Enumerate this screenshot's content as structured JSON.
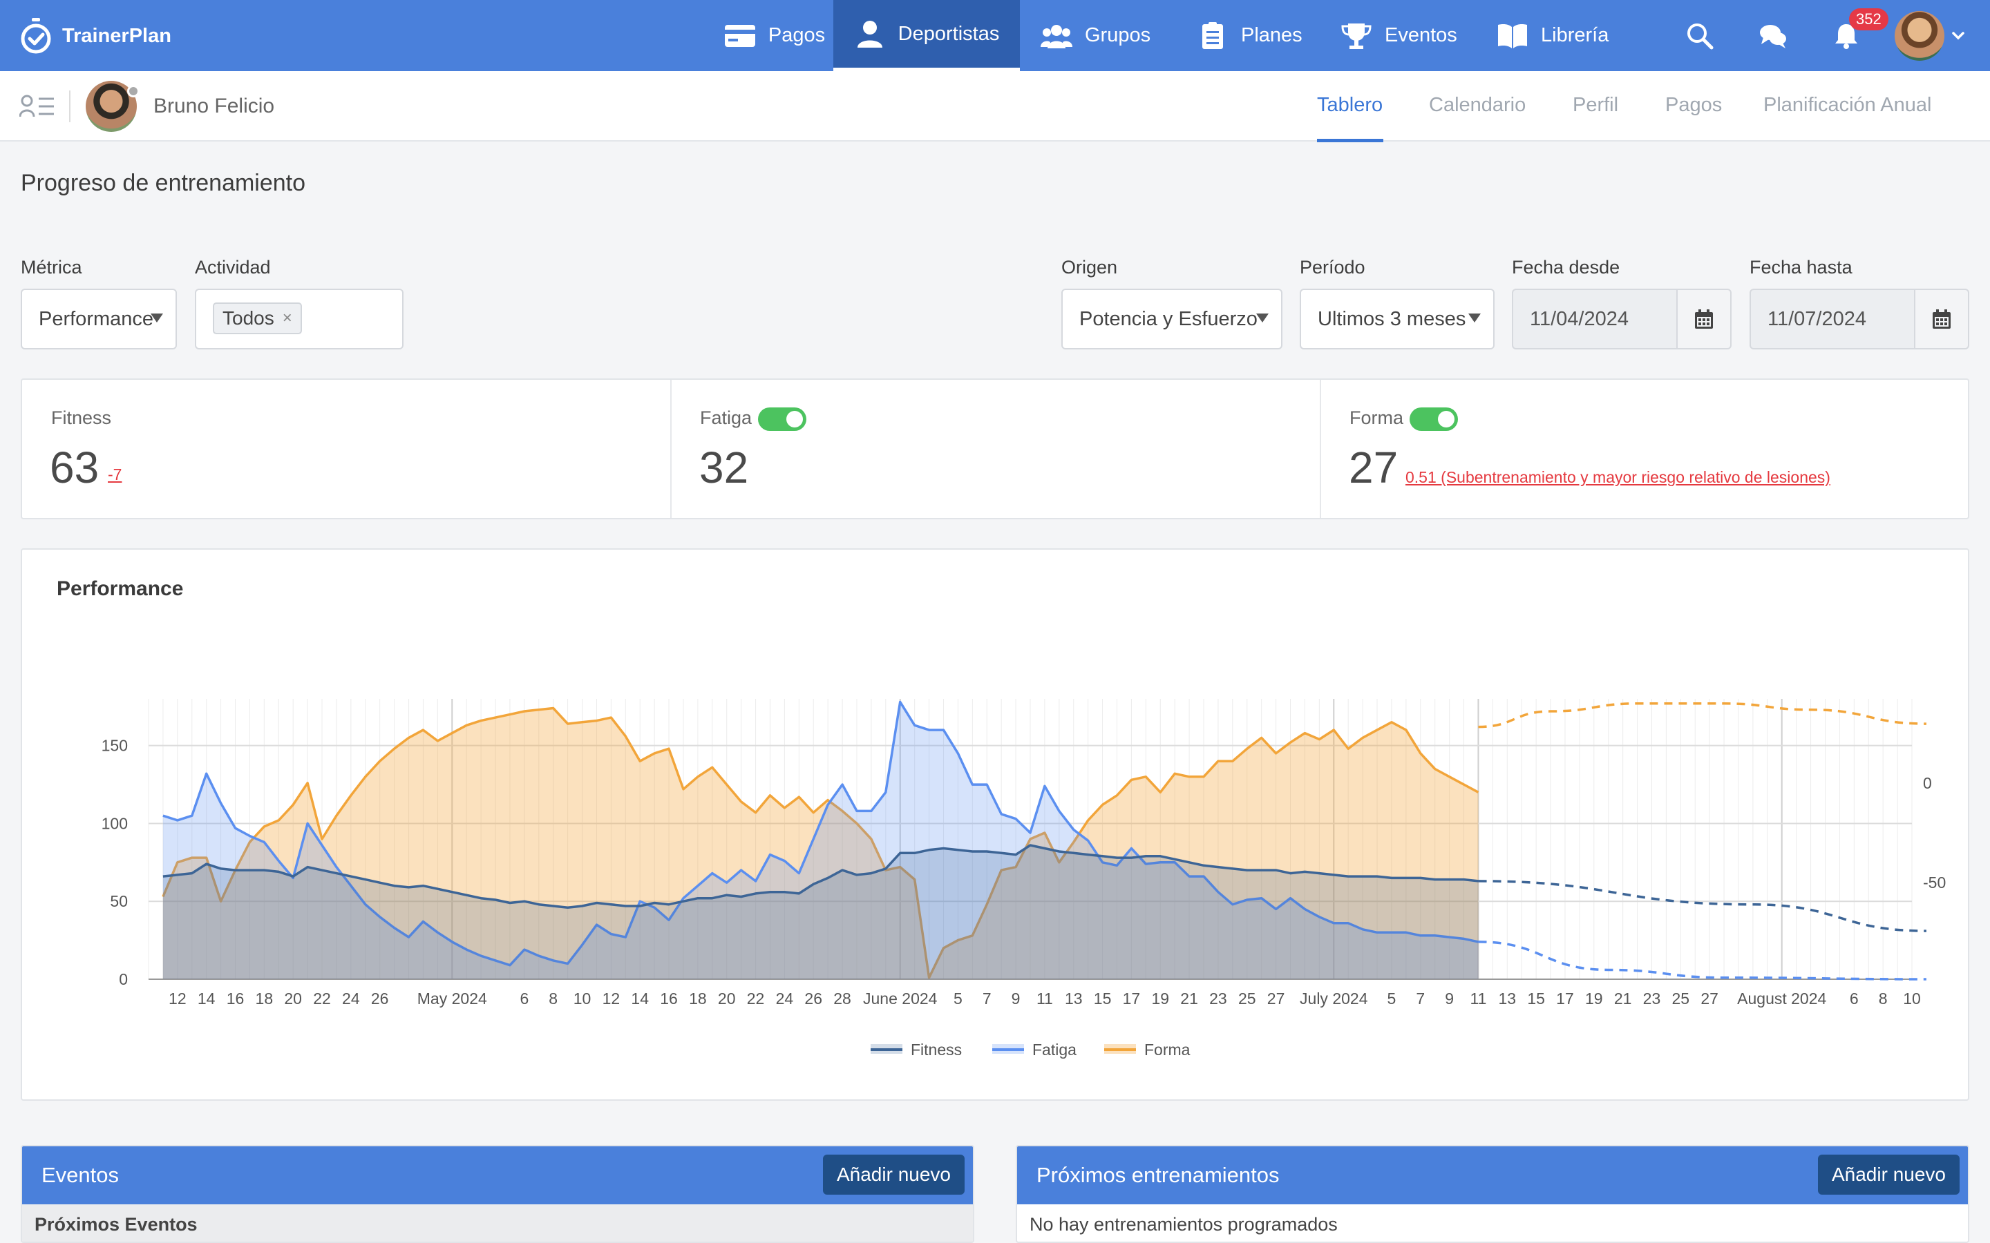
{
  "app": {
    "brand": "TrainerPlan"
  },
  "nav": {
    "items": [
      {
        "label": "Pagos",
        "icon": "credit-card-icon"
      },
      {
        "label": "Deportistas",
        "icon": "user-icon",
        "active": true
      },
      {
        "label": "Grupos",
        "icon": "users-icon"
      },
      {
        "label": "Planes",
        "icon": "clipboard-list-icon"
      },
      {
        "label": "Eventos",
        "icon": "trophy-icon"
      },
      {
        "label": "Librería",
        "icon": "book-open-icon"
      }
    ],
    "notifications_count": "352"
  },
  "athlete": {
    "name": "Bruno Felicio"
  },
  "tabs": [
    {
      "label": "Tablero",
      "active": true
    },
    {
      "label": "Calendario"
    },
    {
      "label": "Perfil"
    },
    {
      "label": "Pagos"
    },
    {
      "label": "Planificación Anual"
    }
  ],
  "page": {
    "title": "Progreso de entrenamiento"
  },
  "filters": {
    "metric": {
      "label": "Métrica",
      "value": "Performance"
    },
    "activity": {
      "label": "Actividad",
      "chip": "Todos",
      "chip_remove": "×"
    },
    "origin": {
      "label": "Origen",
      "value": "Potencia y Esfuerzo"
    },
    "period": {
      "label": "Período",
      "value": "Ultimos 3 meses"
    },
    "date_from": {
      "label": "Fecha desde",
      "value": "11/04/2024"
    },
    "date_to": {
      "label": "Fecha hasta",
      "value": "11/07/2024"
    }
  },
  "stats": {
    "fitness": {
      "label": "Fitness",
      "value": "63",
      "delta": "-7"
    },
    "fatigue": {
      "label": "Fatiga",
      "value": "32",
      "toggle_on": true
    },
    "form": {
      "label": "Forma",
      "value": "27",
      "note": "0.51 (Subentrenamiento y mayor riesgo relativo de lesiones)",
      "toggle_on": true
    }
  },
  "colors": {
    "accent": "#4a80db",
    "fitness": "#3d6596",
    "fatigue": "#5b8ff0",
    "form": "#f2a53a",
    "danger": "#e5393f",
    "toggle": "#4cc35f"
  },
  "chart_data": {
    "type": "area",
    "title": "Performance",
    "x_tick_labels": [
      "12",
      "14",
      "16",
      "18",
      "20",
      "22",
      "24",
      "26",
      "May 2024",
      "6",
      "8",
      "10",
      "12",
      "14",
      "16",
      "18",
      "20",
      "22",
      "24",
      "26",
      "28",
      "June 2024",
      "5",
      "7",
      "9",
      "11",
      "13",
      "15",
      "17",
      "19",
      "21",
      "23",
      "25",
      "27",
      "July 2024",
      "5",
      "7",
      "9",
      "11",
      "13",
      "15",
      "17",
      "19",
      "21",
      "23",
      "25",
      "27",
      "August 2024",
      "6",
      "8",
      "10"
    ],
    "x_range": [
      "2024-04-11",
      "2024-08-10"
    ],
    "y_left": {
      "ticks": [
        0,
        50,
        100,
        150
      ],
      "range": [
        0,
        180
      ]
    },
    "y_right": {
      "ticks": [
        0,
        -50
      ]
    },
    "projection_start": "2024-07-11",
    "legend": [
      "Fitness",
      "Fatiga",
      "Forma"
    ],
    "series": [
      {
        "name": "Fitness",
        "x": [
          0,
          1,
          2,
          3,
          4,
          5,
          6,
          7,
          8,
          9,
          10,
          11,
          12,
          13,
          14,
          15,
          16,
          17,
          18,
          19,
          20,
          21,
          22,
          23,
          24,
          25,
          26,
          27,
          28,
          29,
          30,
          31,
          32,
          33,
          34,
          35,
          36,
          37,
          38,
          39,
          40,
          41,
          42,
          43,
          44,
          45,
          46,
          47,
          48,
          49,
          50,
          51,
          52,
          53,
          54,
          55,
          56,
          57,
          58,
          59,
          60,
          61,
          62,
          63,
          64,
          65,
          66,
          67,
          68,
          69,
          70,
          71,
          72,
          73,
          74,
          75,
          76,
          77,
          78,
          79,
          80,
          81,
          82,
          83,
          84,
          85,
          86,
          87,
          88,
          89,
          90,
          91
        ],
        "y": [
          66,
          67,
          68,
          74,
          71,
          70,
          70,
          70,
          69,
          66,
          72,
          70,
          68,
          66,
          64,
          62,
          60,
          59,
          60,
          58,
          56,
          54,
          52,
          51,
          49,
          50,
          48,
          47,
          46,
          47,
          49,
          48,
          47,
          47,
          49,
          48,
          50,
          52,
          52,
          54,
          53,
          55,
          56,
          56,
          55,
          61,
          65,
          70,
          67,
          68,
          71,
          81,
          81,
          83,
          84,
          83,
          82,
          82,
          81,
          80,
          86,
          84,
          82,
          81,
          80,
          79,
          78,
          78,
          79,
          79,
          77,
          75,
          73,
          72,
          71,
          70,
          70,
          70,
          68,
          69,
          68,
          67,
          66,
          66,
          66,
          65,
          65,
          65,
          64,
          64,
          64,
          63
        ],
        "projection": {
          "x": [
            91,
            110,
            122
          ],
          "y": [
            63,
            48,
            31
          ]
        }
      },
      {
        "name": "Fatiga",
        "x": [
          0,
          1,
          2,
          3,
          4,
          5,
          6,
          7,
          8,
          9,
          10,
          11,
          12,
          13,
          14,
          15,
          16,
          17,
          18,
          19,
          20,
          21,
          22,
          23,
          24,
          25,
          26,
          27,
          28,
          29,
          30,
          31,
          32,
          33,
          34,
          35,
          36,
          37,
          38,
          39,
          40,
          41,
          42,
          43,
          44,
          45,
          46,
          47,
          48,
          49,
          50,
          51,
          52,
          53,
          54,
          55,
          56,
          57,
          58,
          59,
          60,
          61,
          62,
          63,
          64,
          65,
          66,
          67,
          68,
          69,
          70,
          71,
          72,
          73,
          74,
          75,
          76,
          77,
          78,
          79,
          80,
          81,
          82,
          83,
          84,
          85,
          86,
          87,
          88,
          89,
          90,
          91
        ],
        "y": [
          105,
          102,
          105,
          132,
          113,
          97,
          92,
          88,
          76,
          65,
          100,
          86,
          72,
          60,
          48,
          40,
          33,
          27,
          37,
          30,
          24,
          19,
          15,
          12,
          9,
          19,
          15,
          12,
          10,
          22,
          35,
          29,
          27,
          50,
          46,
          38,
          52,
          60,
          68,
          62,
          70,
          63,
          80,
          76,
          68,
          90,
          112,
          125,
          108,
          108,
          120,
          178,
          163,
          160,
          160,
          145,
          125,
          125,
          106,
          103,
          94,
          124,
          108,
          96,
          89,
          75,
          73,
          84,
          74,
          75,
          75,
          66,
          66,
          56,
          48,
          51,
          52,
          45,
          52,
          45,
          40,
          36,
          36,
          32,
          30,
          30,
          30,
          28,
          28,
          27,
          26,
          24
        ],
        "projection": {
          "x": [
            91,
            100,
            108,
            122
          ],
          "y": [
            24,
            6,
            1,
            0
          ]
        }
      },
      {
        "name": "Forma",
        "x": [
          0,
          1,
          2,
          3,
          4,
          5,
          6,
          7,
          8,
          9,
          10,
          11,
          12,
          13,
          14,
          15,
          16,
          17,
          18,
          19,
          20,
          21,
          22,
          23,
          24,
          25,
          26,
          27,
          28,
          29,
          30,
          31,
          32,
          33,
          34,
          35,
          36,
          37,
          38,
          39,
          40,
          41,
          42,
          43,
          44,
          45,
          46,
          47,
          48,
          49,
          50,
          51,
          52,
          53,
          54,
          55,
          56,
          57,
          58,
          59,
          60,
          61,
          62,
          63,
          64,
          65,
          66,
          67,
          68,
          69,
          70,
          71,
          72,
          73,
          74,
          75,
          76,
          77,
          78,
          79,
          80,
          81,
          82,
          83,
          84,
          85,
          86,
          87,
          88,
          89,
          90,
          91
        ],
        "y": [
          53,
          75,
          78,
          78,
          50,
          70,
          88,
          98,
          102,
          112,
          126,
          90,
          105,
          118,
          130,
          140,
          148,
          155,
          160,
          153,
          158,
          163,
          166,
          168,
          170,
          172,
          173,
          174,
          164,
          165,
          166,
          168,
          156,
          140,
          145,
          148,
          122,
          130,
          136,
          125,
          114,
          107,
          118,
          110,
          117,
          107,
          115,
          108,
          100,
          90,
          70,
          72,
          64,
          1,
          20,
          25,
          28,
          48,
          70,
          72,
          90,
          94,
          75,
          88,
          102,
          112,
          118,
          128,
          130,
          120,
          132,
          130,
          130,
          140,
          140,
          148,
          155,
          145,
          152,
          158,
          154,
          160,
          148,
          155,
          160,
          165,
          160,
          145,
          135,
          130,
          125,
          120
        ],
        "projection": {
          "x": [
            91,
            96,
            102,
            108,
            114,
            122
          ],
          "y": [
            162,
            172,
            177,
            177,
            173,
            164
          ]
        }
      }
    ]
  },
  "events_panel": {
    "title": "Eventos",
    "add_label": "Añadir nuevo",
    "subheader": "Próximos Eventos"
  },
  "trainings_panel": {
    "title": "Próximos entrenamientos",
    "add_label": "Añadir nuevo",
    "empty": "No hay entrenamientos programados"
  }
}
